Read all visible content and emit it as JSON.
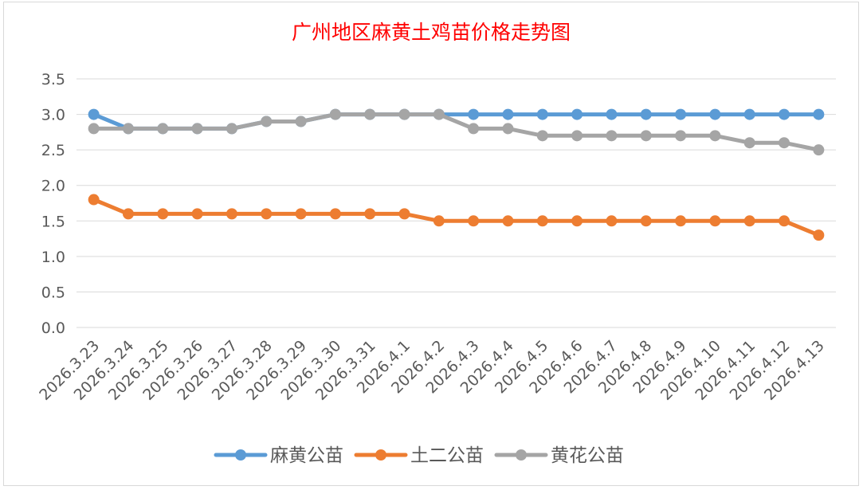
{
  "chart_data": {
    "type": "line",
    "title": "广州地区麻黄土鸡苗价格走势图",
    "xlabel": "",
    "ylabel": "",
    "ylim": [
      0,
      3.5
    ],
    "y_ticks": [
      "0.0",
      "0.5",
      "1.0",
      "1.5",
      "2.0",
      "2.5",
      "3.0",
      "3.5"
    ],
    "grid": "horizontal",
    "legend_position": "bottom",
    "categories": [
      "2026.3.23",
      "2026.3.24",
      "2026.3.25",
      "2026.3.26",
      "2026.3.27",
      "2026.3.28",
      "2026.3.29",
      "2026.3.30",
      "2026.3.31",
      "2026.4.1",
      "2026.4.2",
      "2026.4.3",
      "2026.4.4",
      "2026.4.5",
      "2026.4.6",
      "2026.4.7",
      "2026.4.8",
      "2026.4.9",
      "2026.4.10",
      "2026.4.11",
      "2026.4.12",
      "2026.4.13"
    ],
    "series": [
      {
        "name": "麻黄公苗",
        "color": "#5b9bd5",
        "values": [
          3.0,
          2.8,
          2.8,
          2.8,
          2.8,
          2.9,
          2.9,
          3.0,
          3.0,
          3.0,
          3.0,
          3.0,
          3.0,
          3.0,
          3.0,
          3.0,
          3.0,
          3.0,
          3.0,
          3.0,
          3.0,
          3.0
        ]
      },
      {
        "name": "土二公苗",
        "color": "#ed7d31",
        "values": [
          1.8,
          1.6,
          1.6,
          1.6,
          1.6,
          1.6,
          1.6,
          1.6,
          1.6,
          1.6,
          1.5,
          1.5,
          1.5,
          1.5,
          1.5,
          1.5,
          1.5,
          1.5,
          1.5,
          1.5,
          1.5,
          1.3
        ]
      },
      {
        "name": "黄花公苗",
        "color": "#a5a5a5",
        "values": [
          2.8,
          2.8,
          2.8,
          2.8,
          2.8,
          2.9,
          2.9,
          3.0,
          3.0,
          3.0,
          3.0,
          2.8,
          2.8,
          2.7,
          2.7,
          2.7,
          2.7,
          2.7,
          2.7,
          2.6,
          2.6,
          2.5
        ]
      }
    ]
  }
}
